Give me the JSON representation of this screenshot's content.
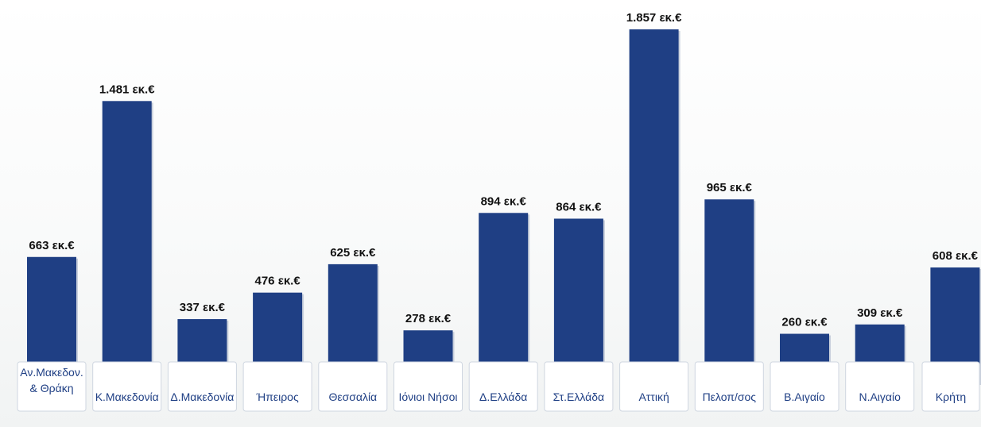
{
  "chart_data": {
    "type": "bar",
    "categories": [
      "Αν.Μακεδον. & Θράκη",
      "Κ.Μακεδονία",
      "Δ.Μακεδονία",
      "Ήπειρος",
      "Θεσσαλία",
      "Ιόνιοι Νήσοι",
      "Δ.Ελλάδα",
      "Στ.Ελλάδα",
      "Αττική",
      "Πελοπ/σος",
      "Β.Αιγαίο",
      "Ν.Αιγαίο",
      "Κρήτη"
    ],
    "category_lines": [
      [
        "Αν.Μακεδον.",
        "& Θράκη"
      ],
      [
        "Κ.Μακεδονία"
      ],
      [
        "Δ.Μακεδονία"
      ],
      [
        "Ήπειρος"
      ],
      [
        "Θεσσαλία"
      ],
      [
        "Ιόνιοι Νήσοι"
      ],
      [
        "Δ.Ελλάδα"
      ],
      [
        "Στ.Ελλάδα"
      ],
      [
        "Αττική"
      ],
      [
        "Πελοπ/σος"
      ],
      [
        "Β.Αιγαίο"
      ],
      [
        "Ν.Αιγαίο"
      ],
      [
        "Κρήτη"
      ]
    ],
    "values": [
      663,
      1481,
      337,
      476,
      625,
      278,
      894,
      864,
      1857,
      965,
      260,
      309,
      608
    ],
    "value_labels": [
      "663 εκ.€",
      "1.481 εκ.€",
      "337 εκ.€",
      "476 εκ.€",
      "625 εκ.€",
      "278 εκ.€",
      "894 εκ.€",
      "864 εκ.€",
      "1.857 εκ.€",
      "965 εκ.€",
      "260 εκ.€",
      "309 εκ.€",
      "608 εκ.€"
    ],
    "title": "",
    "xlabel": "",
    "ylabel": "",
    "ylim": [
      0,
      1857
    ],
    "grid": false,
    "legend": "none",
    "colors": {
      "bar": "#1f3f84",
      "category_text": "#1f3f84",
      "value_text": "#111111"
    }
  }
}
